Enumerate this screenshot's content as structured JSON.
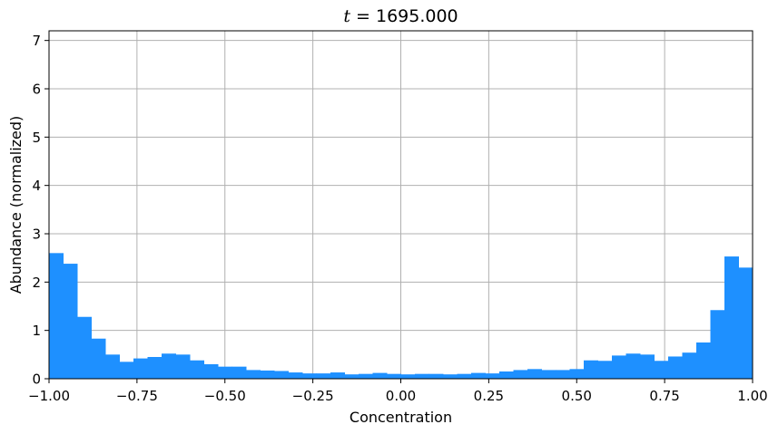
{
  "chart_data": {
    "type": "bar",
    "title_prefix": "t",
    "title_suffix": " = 1695.000",
    "xlabel": "Concentration",
    "ylabel": "Abundance (normalized)",
    "xlim": [
      -1.0,
      1.0
    ],
    "ylim": [
      0,
      7.2
    ],
    "grid": true,
    "bar_color": "#1E90FF",
    "x_ticks": [
      -1.0,
      -0.75,
      -0.5,
      -0.25,
      0.0,
      0.25,
      0.5,
      0.75,
      1.0
    ],
    "x_tick_labels": [
      "−1.00",
      "−0.75",
      "−0.50",
      "−0.25",
      "0.00",
      "0.25",
      "0.50",
      "0.75",
      "1.00"
    ],
    "y_ticks": [
      0,
      1,
      2,
      3,
      4,
      5,
      6,
      7
    ],
    "y_tick_labels": [
      "0",
      "1",
      "2",
      "3",
      "4",
      "5",
      "6",
      "7"
    ],
    "bin_width": 0.04,
    "bin_starts": [
      -1.0,
      -0.96,
      -0.92,
      -0.88,
      -0.84,
      -0.8,
      -0.76,
      -0.72,
      -0.68,
      -0.64,
      -0.6,
      -0.56,
      -0.52,
      -0.48,
      -0.44,
      -0.4,
      -0.36,
      -0.32,
      -0.28,
      -0.24,
      -0.2,
      -0.16,
      -0.12,
      -0.08,
      -0.04,
      0.0,
      0.04,
      0.08,
      0.12,
      0.16,
      0.2,
      0.24,
      0.28,
      0.32,
      0.36,
      0.4,
      0.44,
      0.48,
      0.52,
      0.56,
      0.6,
      0.64,
      0.68,
      0.72,
      0.76,
      0.8,
      0.84,
      0.88,
      0.92,
      0.96
    ],
    "values": [
      2.6,
      2.38,
      1.28,
      0.83,
      0.5,
      0.35,
      0.42,
      0.45,
      0.52,
      0.5,
      0.38,
      0.3,
      0.25,
      0.25,
      0.18,
      0.17,
      0.16,
      0.13,
      0.11,
      0.11,
      0.13,
      0.09,
      0.1,
      0.12,
      0.1,
      0.09,
      0.1,
      0.1,
      0.09,
      0.1,
      0.12,
      0.11,
      0.15,
      0.18,
      0.2,
      0.18,
      0.18,
      0.2,
      0.38,
      0.37,
      0.48,
      0.52,
      0.5,
      0.37,
      0.46,
      0.54,
      0.75,
      1.42,
      2.53,
      2.3
    ]
  }
}
